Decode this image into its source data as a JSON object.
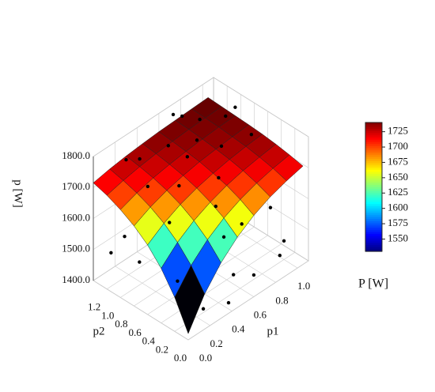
{
  "chart_data": {
    "type": "surface",
    "zlabel": "p [W]",
    "xlabel": "p1",
    "ylabel": "p2",
    "x": [
      0,
      0.15,
      0.3,
      0.45,
      0.6,
      0.75,
      0.9,
      1.05
    ],
    "y": [
      0,
      0.2,
      0.4,
      0.6,
      0.8,
      1.0,
      1.2,
      1.4
    ],
    "z": [
      [
        1420,
        1513,
        1579,
        1627,
        1662,
        1687,
        1704,
        1717
      ],
      [
        1510,
        1578,
        1626,
        1661,
        1686,
        1704,
        1717,
        1726
      ],
      [
        1576,
        1625,
        1660,
        1685,
        1704,
        1717,
        1726,
        1733
      ],
      [
        1624,
        1659,
        1685,
        1703,
        1716,
        1726,
        1733,
        1738
      ],
      [
        1658,
        1684,
        1703,
        1716,
        1726,
        1732,
        1737,
        1741
      ],
      [
        1683,
        1702,
        1716,
        1725,
        1732,
        1737,
        1741,
        1743
      ],
      [
        1702,
        1715,
        1725,
        1732,
        1737,
        1741,
        1743,
        1745
      ],
      [
        1715,
        1725,
        1732,
        1737,
        1741,
        1743,
        1745,
        1747
      ]
    ],
    "points": {
      "p1": [
        0.1,
        0.3,
        0.5,
        0.7,
        0.9,
        1.0,
        0.2,
        0.4,
        0.6,
        0.8,
        1.05,
        0.15,
        0.35,
        0.55,
        0.75,
        0.95,
        0.05,
        0.25,
        0.45,
        0.65,
        0.85,
        1.0,
        0.3,
        0.6,
        0.9,
        0.2,
        0.5,
        0.8,
        0.1,
        0.7
      ],
      "p2": [
        1.3,
        1.2,
        1.1,
        1.0,
        0.9,
        0.2,
        0.1,
        0.05,
        0.3,
        0.5,
        1.0,
        0.4,
        0.7,
        0.9,
        1.3,
        0.6,
        0.8,
        1.0,
        0.2,
        0.6,
        1.2,
        0.4,
        1.4,
        0.0,
        0.1,
        0.6,
        0.4,
        0.8,
        1.1,
        1.35
      ],
      "P": [
        1480,
        1750,
        1760,
        1745,
        1790,
        1460,
        1440,
        1420,
        1430,
        1520,
        1770,
        1500,
        1720,
        1740,
        1770,
        1760,
        1530,
        1700,
        1600,
        1690,
        1750,
        1540,
        1720,
        1470,
        1450,
        1650,
        1660,
        1730,
        1560,
        1780
      ],
      "color": "#000000"
    },
    "xlim": [
      0,
      1.1
    ],
    "ylim": [
      0,
      1.4
    ],
    "zlim": [
      1400,
      1800
    ],
    "xticks": [
      {
        "value": 0,
        "label": "0.0"
      },
      {
        "value": 0.2,
        "label": "0.2"
      },
      {
        "value": 0.4,
        "label": "0.4"
      },
      {
        "value": 0.6,
        "label": "0.6"
      },
      {
        "value": 0.8,
        "label": "0.8"
      },
      {
        "value": 1.0,
        "label": "1.0"
      }
    ],
    "yticks": [
      {
        "value": 0,
        "label": "0.0"
      },
      {
        "value": 0.2,
        "label": "0.2"
      },
      {
        "value": 0.4,
        "label": "0.4"
      },
      {
        "value": 0.6,
        "label": "0.6"
      },
      {
        "value": 0.8,
        "label": "0.8"
      },
      {
        "value": 1.0,
        "label": "1.0"
      },
      {
        "value": 1.2,
        "label": "1.2"
      }
    ],
    "zticks": [
      {
        "value": 1400,
        "label": "1400.0"
      },
      {
        "value": 1500,
        "label": "1500.0"
      },
      {
        "value": 1600,
        "label": "1600.0"
      },
      {
        "value": 1700,
        "label": "1700.0"
      },
      {
        "value": 1800,
        "label": "1800.0"
      }
    ],
    "colorbar": {
      "label": "P [W]",
      "colormap": "jet",
      "lim": [
        1530,
        1740
      ],
      "ticks": [
        1550,
        1575,
        1600,
        1625,
        1650,
        1675,
        1700,
        1725
      ]
    }
  }
}
